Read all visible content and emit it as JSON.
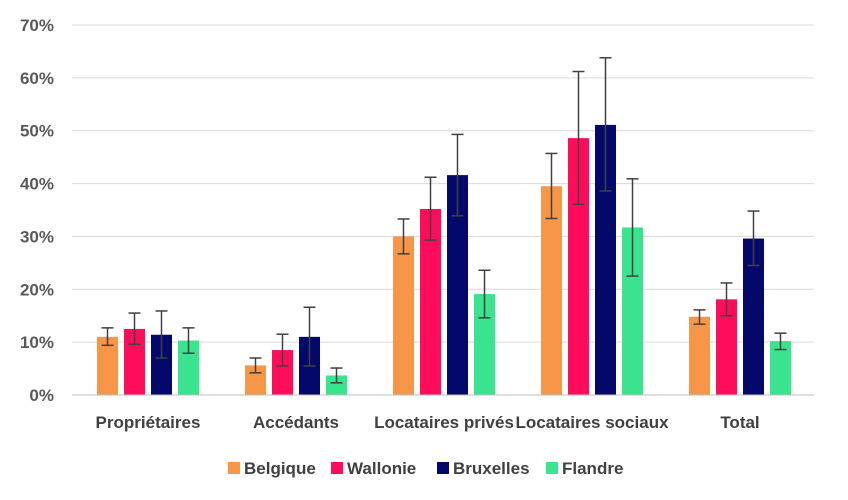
{
  "chart_data": {
    "type": "bar",
    "title": "",
    "xlabel": "",
    "ylabel": "",
    "ylim": [
      0,
      70
    ],
    "yticks": [
      "0%",
      "10%",
      "20%",
      "30%",
      "40%",
      "50%",
      "60%",
      "70%"
    ],
    "categories": [
      "Propriétaires",
      "Accédants",
      "Locataires privés",
      "Locataires sociaux",
      "Total"
    ],
    "grid": true,
    "legend_position": "bottom",
    "series": [
      {
        "name": "Belgique",
        "color": "#f79646",
        "values": [
          11.0,
          5.6,
          30.0,
          39.5,
          14.8
        ],
        "error_low": [
          9.4,
          4.2,
          26.7,
          33.4,
          13.4
        ],
        "error_high": [
          12.7,
          7.0,
          33.3,
          45.7,
          16.1
        ]
      },
      {
        "name": "Wallonie",
        "color": "#ff0d5c",
        "values": [
          12.5,
          8.5,
          35.2,
          48.6,
          18.1
        ],
        "error_low": [
          9.6,
          5.5,
          29.3,
          36.1,
          15.0
        ],
        "error_high": [
          15.5,
          11.5,
          41.2,
          61.2,
          21.2
        ]
      },
      {
        "name": "Bruxelles",
        "color": "#04086b",
        "values": [
          11.4,
          11.0,
          41.6,
          51.1,
          29.6
        ],
        "error_low": [
          7.0,
          5.5,
          33.9,
          38.6,
          24.5
        ],
        "error_high": [
          15.9,
          16.6,
          49.3,
          63.8,
          34.8
        ]
      },
      {
        "name": "Flandre",
        "color": "#3ae38d",
        "values": [
          10.3,
          3.7,
          19.1,
          31.7,
          10.2
        ],
        "error_low": [
          7.9,
          2.3,
          14.6,
          22.5,
          8.6
        ],
        "error_high": [
          12.7,
          5.1,
          23.6,
          40.9,
          11.7
        ]
      }
    ]
  }
}
